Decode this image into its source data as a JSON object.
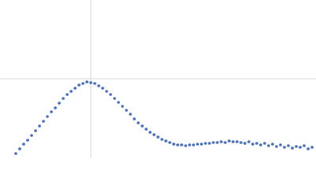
{
  "chart_data": {
    "type": "scatter",
    "color": "#3b66b8",
    "xlim": [
      0,
      400
    ],
    "ylim": [
      0,
      200
    ],
    "reference_lines": {
      "x": [
        115
      ],
      "y": [
        100
      ]
    },
    "x": [
      20,
      25,
      30,
      35,
      40,
      45,
      50,
      55,
      60,
      65,
      70,
      75,
      80,
      85,
      90,
      95,
      100,
      105,
      110,
      115,
      120,
      125,
      130,
      135,
      140,
      145,
      150,
      155,
      160,
      165,
      170,
      175,
      180,
      185,
      190,
      195,
      200,
      205,
      210,
      215,
      220,
      225,
      230,
      235,
      240,
      245,
      250,
      255,
      260,
      265,
      270,
      275,
      280,
      285,
      290,
      295,
      300,
      305,
      310,
      315,
      320,
      325,
      330,
      335,
      340,
      345,
      350,
      355,
      360,
      365,
      370,
      375,
      380,
      385,
      390,
      395
    ],
    "values": [
      5,
      11,
      17,
      22,
      28,
      34,
      40,
      46,
      52,
      58,
      63,
      69,
      75,
      80,
      84,
      88,
      92,
      94,
      96,
      95,
      94,
      91,
      88,
      84,
      80,
      75,
      70,
      65,
      60,
      55,
      49,
      44,
      40,
      36,
      32,
      29,
      26,
      23,
      21,
      19,
      17,
      16,
      16,
      15,
      16,
      16,
      17,
      17,
      18,
      18,
      19,
      19,
      20,
      19,
      21,
      20,
      20,
      19,
      18,
      20,
      17,
      18,
      16,
      18,
      15,
      17,
      14,
      16,
      13,
      15,
      12,
      14,
      13,
      15,
      11,
      13
    ]
  }
}
